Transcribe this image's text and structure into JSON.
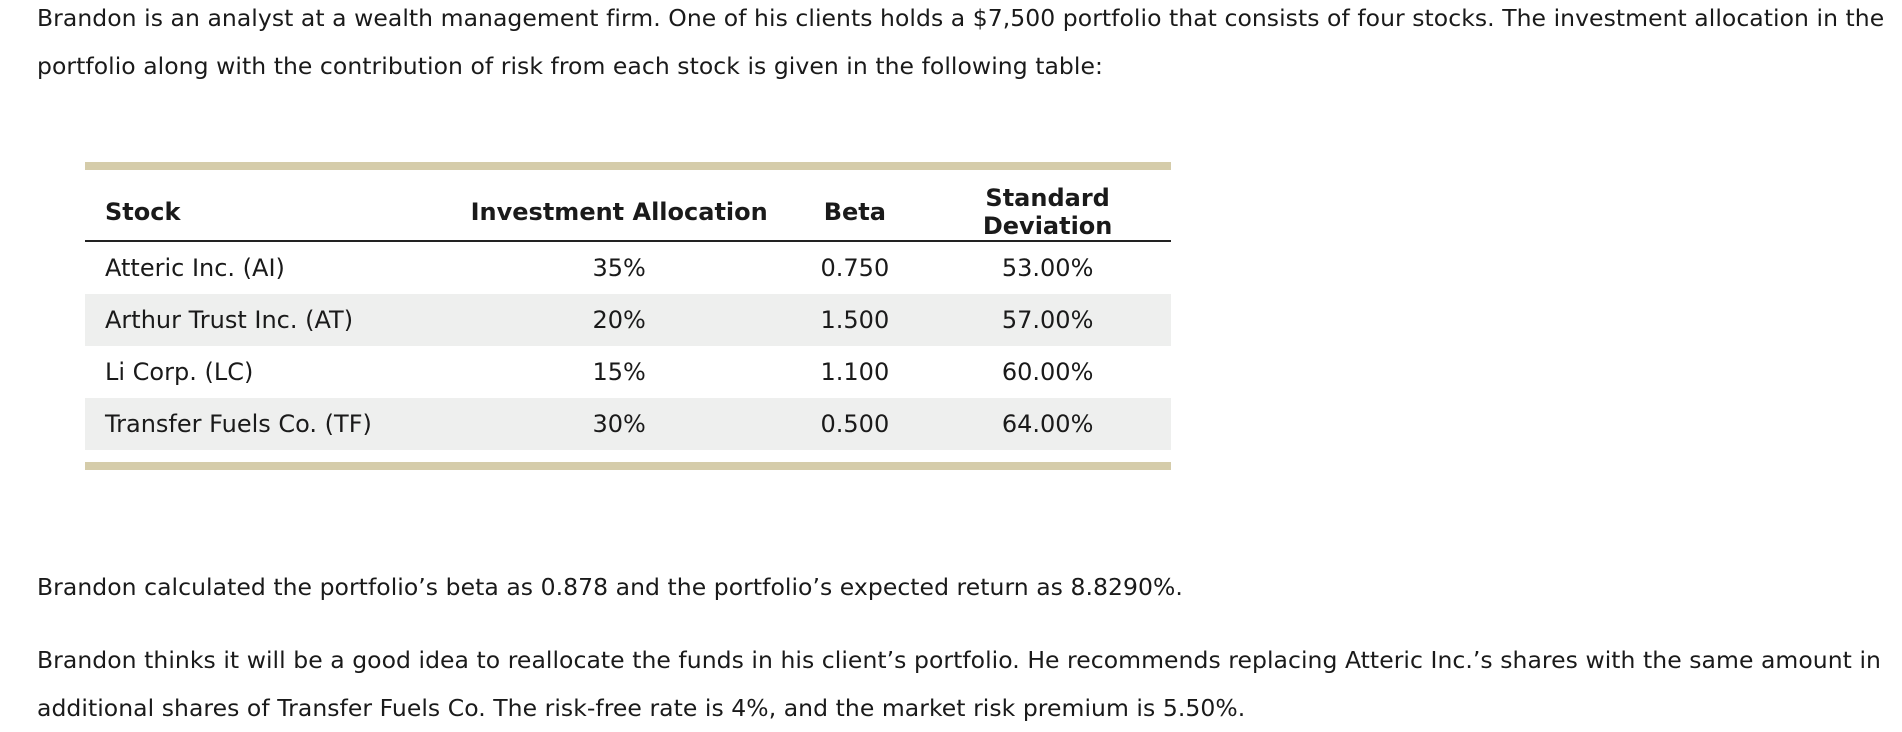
{
  "intro": "Brandon is an analyst at a wealth management firm. One of his clients holds a $7,500 portfolio that consists of four stocks. The investment allocation in the portfolio along with the contribution of risk from each stock is given in the following table:",
  "table": {
    "headers": {
      "stock": "Stock",
      "allocation": "Investment Allocation",
      "beta": "Beta",
      "sd": "Standard Deviation"
    },
    "rows": [
      {
        "stock": "Atteric Inc. (AI)",
        "allocation": "35%",
        "beta": "0.750",
        "sd": "53.00%"
      },
      {
        "stock": "Arthur Trust Inc. (AT)",
        "allocation": "20%",
        "beta": "1.500",
        "sd": "57.00%"
      },
      {
        "stock": "Li Corp. (LC)",
        "allocation": "15%",
        "beta": "1.100",
        "sd": "60.00%"
      },
      {
        "stock": "Transfer Fuels Co. (TF)",
        "allocation": "30%",
        "beta": "0.500",
        "sd": "64.00%"
      }
    ],
    "colors": {
      "band": "#d5ccaa",
      "row_shade": "#eeefee"
    }
  },
  "calc": "Brandon calculated the portfolio’s beta as 0.878 and the portfolio’s expected return as 8.8290%.",
  "recommendation": "Brandon thinks it will be a good idea to reallocate the funds in his client’s portfolio. He recommends replacing Atteric Inc.’s shares with the same amount in additional shares of Transfer Fuels Co. The risk-free rate is 4%, and the market risk premium is 5.50%."
}
